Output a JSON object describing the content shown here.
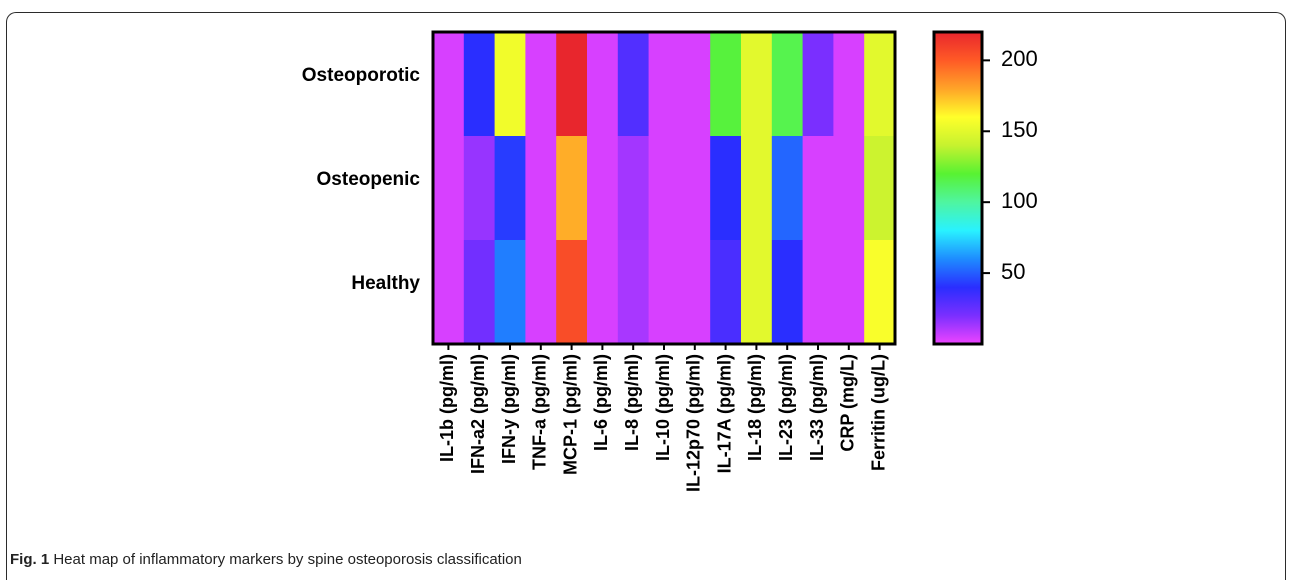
{
  "caption": {
    "label": "Fig. 1",
    "text": "Heat map of inflammatory markers by spine osteoporosis classification"
  },
  "chart_data": {
    "type": "heatmap",
    "rows": [
      "Osteoporotic",
      "Osteopenic",
      "Healthy"
    ],
    "columns": [
      "IL-1b (pg/ml)",
      "IFN-a2 (pg/ml)",
      "IFN-y (pg/ml)",
      "TNF-a (pg/ml)",
      "MCP-1 (pg/ml)",
      "IL-6 (pg/ml)",
      "IL-8 (pg/ml)",
      "IL-10 (pg/ml)",
      "IL-12p70 (pg/ml)",
      "IL-17A (pg/ml)",
      "IL-18 (pg/ml)",
      "IL-23 (pg/ml)",
      "IL-33 (pg/ml)",
      "CRP (mg/L)",
      "Ferritin (ug/L)"
    ],
    "values": [
      [
        4,
        40,
        155,
        4,
        220,
        4,
        30,
        4,
        4,
        118,
        150,
        115,
        20,
        4,
        150
      ],
      [
        4,
        15,
        43,
        4,
        178,
        4,
        13,
        4,
        4,
        40,
        150,
        52,
        4,
        4,
        142
      ],
      [
        4,
        22,
        57,
        4,
        205,
        4,
        12,
        4,
        4,
        32,
        150,
        40,
        4,
        4,
        158
      ]
    ],
    "colorbar": {
      "min": 0,
      "max": 220,
      "ticks": [
        50,
        100,
        150,
        200
      ],
      "colors": [
        "#ee44ff",
        "#7a2fff",
        "#2a2eff",
        "#1e8cff",
        "#29f2ff",
        "#4ff5a0",
        "#58f232",
        "#c6f22f",
        "#ffff2a",
        "#ffa428",
        "#ff5a26",
        "#e8262d"
      ]
    }
  }
}
